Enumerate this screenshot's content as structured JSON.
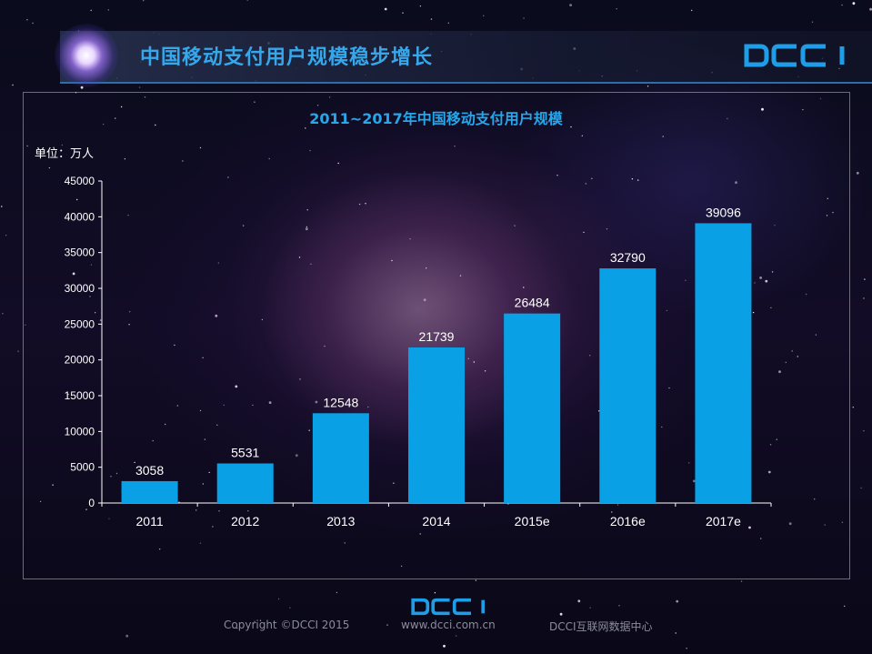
{
  "header": {
    "title": "中国移动支付用户规模稳步增长",
    "logo_text": "DCCI"
  },
  "chart_data": {
    "type": "bar",
    "title": "2011~2017年中国移动支付用户规模",
    "unit_label": "单位：万人",
    "categories": [
      "2011",
      "2012",
      "2013",
      "2014",
      "2015e",
      "2016e",
      "2017e"
    ],
    "values": [
      3058,
      5531,
      12548,
      21739,
      26484,
      32790,
      39096
    ],
    "ylim": [
      0,
      45000
    ],
    "yticks": [
      0,
      5000,
      10000,
      15000,
      20000,
      25000,
      30000,
      35000,
      40000,
      45000
    ],
    "bar_color": "#0aa0e6",
    "grid": false,
    "legend": "none"
  },
  "footer": {
    "copyright": "Copyright ©DCCI 2015",
    "url": "www.dcci.com.cn",
    "org": "DCCI互联网数据中心",
    "logo_text": "DCCI"
  }
}
